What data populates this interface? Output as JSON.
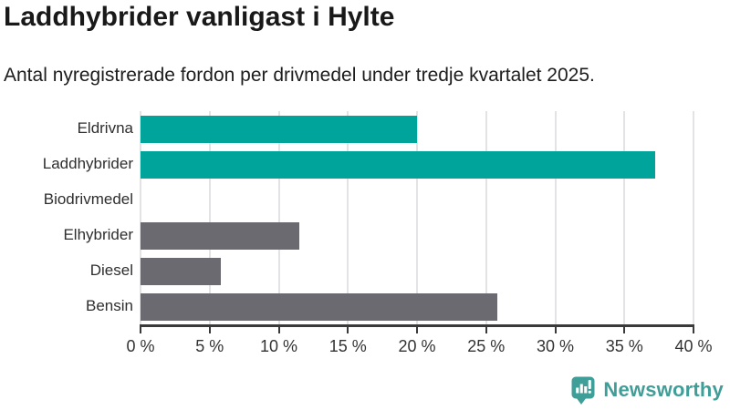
{
  "header": {
    "title": "Laddhybrider vanligast i Hylte",
    "subtitle": "Antal nyregistrerade fordon per drivmedel under tredje kvartalet 2025."
  },
  "chart_data": {
    "type": "bar",
    "orientation": "horizontal",
    "title": "Laddhybrider vanligast i Hylte",
    "subtitle": "Antal nyregistrerade fordon per drivmedel under tredje kvartalet 2025.",
    "categories": [
      "Eldrivna",
      "Laddhybrider",
      "Biodrivmedel",
      "Elhybrider",
      "Diesel",
      "Bensin"
    ],
    "values": [
      20.0,
      37.2,
      0,
      11.5,
      5.8,
      25.8
    ],
    "unit": "%",
    "bar_colors": [
      "#00a49a",
      "#00a49a",
      "#6a6a70",
      "#6a6a70",
      "#6a6a70",
      "#6a6a70"
    ],
    "xlabel": "",
    "ylabel": "",
    "xlim": [
      0,
      40
    ],
    "x_ticks": [
      0,
      5,
      10,
      15,
      20,
      25,
      30,
      35,
      40
    ],
    "x_tick_labels": [
      "0 %",
      "5 %",
      "10 %",
      "15 %",
      "20 %",
      "25 %",
      "30 %",
      "35 %",
      "40 %"
    ],
    "grid": "vertical",
    "legend": "none"
  },
  "colors": {
    "teal": "#00a49a",
    "gray": "#6a6a70",
    "gridline": "#e3e3e5",
    "axis": "#3a3a3a",
    "text": "#191919",
    "logo": "#3f9e98"
  },
  "branding": {
    "logo_text": "Newsworthy",
    "logo_icon": "bar-chart-speech-bubble"
  }
}
